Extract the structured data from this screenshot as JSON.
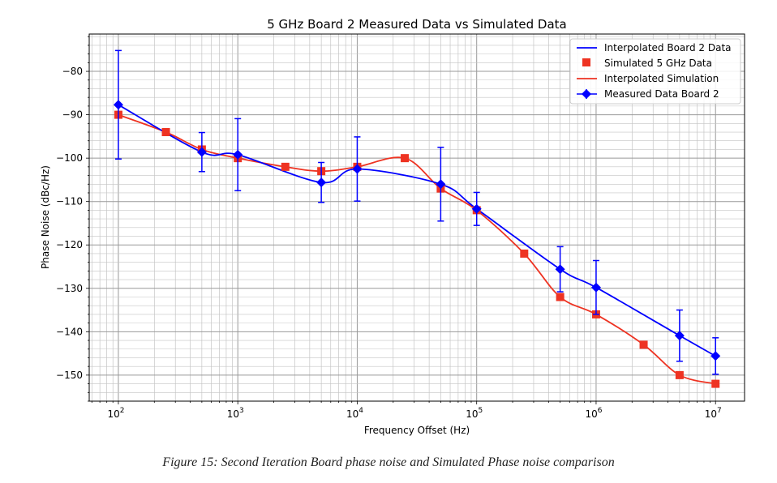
{
  "chart_data": {
    "type": "line",
    "title": "5 GHz Board 2 Measured Data vs Simulated Data",
    "xlabel": "Frequency Offset (Hz)",
    "ylabel": "Phase Noise (dBc/Hz)",
    "xscale": "log",
    "xlim": [
      57,
      17500000
    ],
    "ylim": [
      -156,
      -71.4
    ],
    "x_ticks": [
      {
        "exp": "2",
        "value": 100
      },
      {
        "exp": "3",
        "value": 1000
      },
      {
        "exp": "4",
        "value": 10000
      },
      {
        "exp": "5",
        "value": 100000
      },
      {
        "exp": "6",
        "value": 1000000
      },
      {
        "exp": "7",
        "value": 10000000
      }
    ],
    "x_tick_base": "10",
    "y_ticks": [
      "−80",
      "−90",
      "−100",
      "−110",
      "−120",
      "−130",
      "−140",
      "−150"
    ],
    "y_tick_values": [
      -80,
      -90,
      -100,
      -110,
      -120,
      -130,
      -140,
      -150
    ],
    "grid": "major and minor",
    "legend_position": "top-right",
    "series": [
      {
        "name": "Interpolated Board 2 Data",
        "kind": "interpolated",
        "source": "measured",
        "color": "#0000ff"
      },
      {
        "name": "Simulated 5 GHz Data",
        "kind": "markers",
        "color": "#ee3322",
        "x": [
          100,
          250,
          500,
          1000,
          2500,
          5000,
          10000,
          25000,
          50000,
          100000,
          250000,
          500000,
          1000000,
          2500000,
          5000000,
          10000000
        ],
        "y": [
          -90,
          -94,
          -98,
          -100,
          -102,
          -103,
          -102,
          -100,
          -107,
          -112,
          -122,
          -132,
          -136,
          -143,
          -150,
          -152
        ]
      },
      {
        "name": "Interpolated Simulation",
        "kind": "interpolated",
        "source": "simulated",
        "color": "#ee3322"
      },
      {
        "name": "Measured Data Board 2",
        "kind": "errorbar",
        "color": "#0000ff",
        "x": [
          100,
          500,
          1000,
          5000,
          10000,
          50000,
          100000,
          500000,
          1000000,
          5000000,
          10000000
        ],
        "y": [
          -87.7,
          -98.6,
          -99.2,
          -105.6,
          -102.5,
          -106.0,
          -111.7,
          -125.6,
          -129.8,
          -140.9,
          -145.6
        ],
        "err": [
          12.5,
          4.5,
          8.3,
          4.6,
          7.4,
          8.5,
          3.8,
          5.2,
          6.2,
          5.9,
          4.2
        ]
      }
    ]
  },
  "caption": "Figure 15: Second Iteration Board phase noise and Simulated Phase noise comparison"
}
